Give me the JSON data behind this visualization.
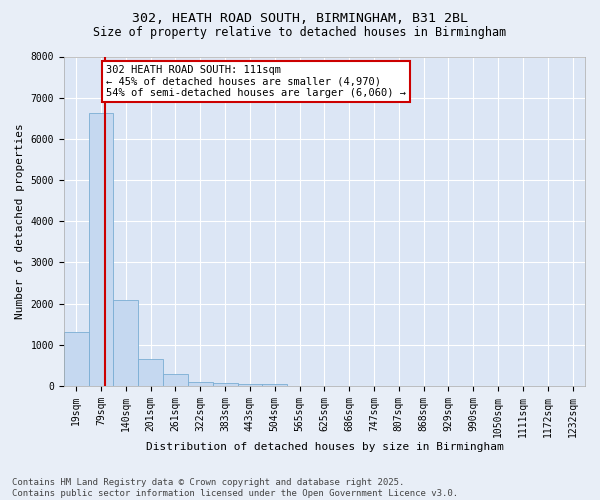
{
  "title_line1": "302, HEATH ROAD SOUTH, BIRMINGHAM, B31 2BL",
  "title_line2": "Size of property relative to detached houses in Birmingham",
  "xlabel": "Distribution of detached houses by size in Birmingham",
  "ylabel": "Number of detached properties",
  "categories": [
    "19sqm",
    "79sqm",
    "140sqm",
    "201sqm",
    "261sqm",
    "322sqm",
    "383sqm",
    "443sqm",
    "504sqm",
    "565sqm",
    "625sqm",
    "686sqm",
    "747sqm",
    "807sqm",
    "868sqm",
    "929sqm",
    "990sqm",
    "1050sqm",
    "1111sqm",
    "1172sqm",
    "1232sqm"
  ],
  "values": [
    1310,
    6630,
    2090,
    660,
    300,
    110,
    70,
    55,
    50,
    0,
    0,
    0,
    0,
    0,
    0,
    0,
    0,
    0,
    0,
    0,
    0
  ],
  "bar_color": "#c5d8f0",
  "bar_edge_color": "#7aadd4",
  "vline_color": "#cc0000",
  "vline_x": 1.15,
  "annotation_text": "302 HEATH ROAD SOUTH: 111sqm\n← 45% of detached houses are smaller (4,970)\n54% of semi-detached houses are larger (6,060) →",
  "annotation_box_color": "#cc0000",
  "ylim": [
    0,
    8000
  ],
  "yticks": [
    0,
    1000,
    2000,
    3000,
    4000,
    5000,
    6000,
    7000,
    8000
  ],
  "background_color": "#e8eef7",
  "plot_background": "#dce6f5",
  "grid_color": "#ffffff",
  "footer_line1": "Contains HM Land Registry data © Crown copyright and database right 2025.",
  "footer_line2": "Contains public sector information licensed under the Open Government Licence v3.0.",
  "title_fontsize": 9.5,
  "subtitle_fontsize": 8.5,
  "axis_label_fontsize": 8,
  "tick_fontsize": 7,
  "annotation_fontsize": 7.5,
  "footer_fontsize": 6.5
}
